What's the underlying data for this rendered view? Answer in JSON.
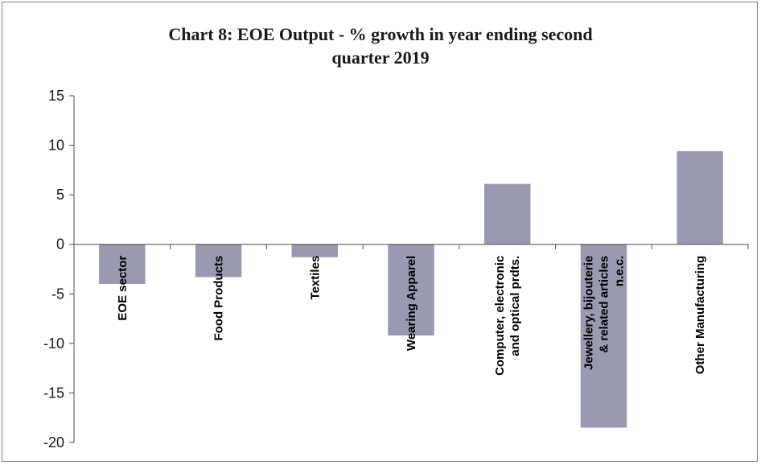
{
  "chart_data": {
    "type": "bar",
    "title_lines": [
      "Chart 8: EOE Output - % growth in year ending second",
      "quarter 2019"
    ],
    "categories": [
      [
        "EOE sector"
      ],
      [
        "Food Products"
      ],
      [
        "Textiles"
      ],
      [
        "Wearing Apparel"
      ],
      [
        "Computer, electronic",
        "and optical prdts."
      ],
      [
        "Jewellery, bijouterie",
        "& related articles",
        "n.e.c."
      ],
      [
        "Other Manufacturing"
      ]
    ],
    "values": [
      -4.0,
      -3.3,
      -1.3,
      -9.2,
      6.1,
      -18.5,
      9.4
    ],
    "ylim": [
      -20,
      15
    ],
    "yticks": [
      15,
      10,
      5,
      0,
      -5,
      -10,
      -15,
      -20
    ],
    "bar_color": "#9999b0",
    "grid": false,
    "legend": "none"
  }
}
